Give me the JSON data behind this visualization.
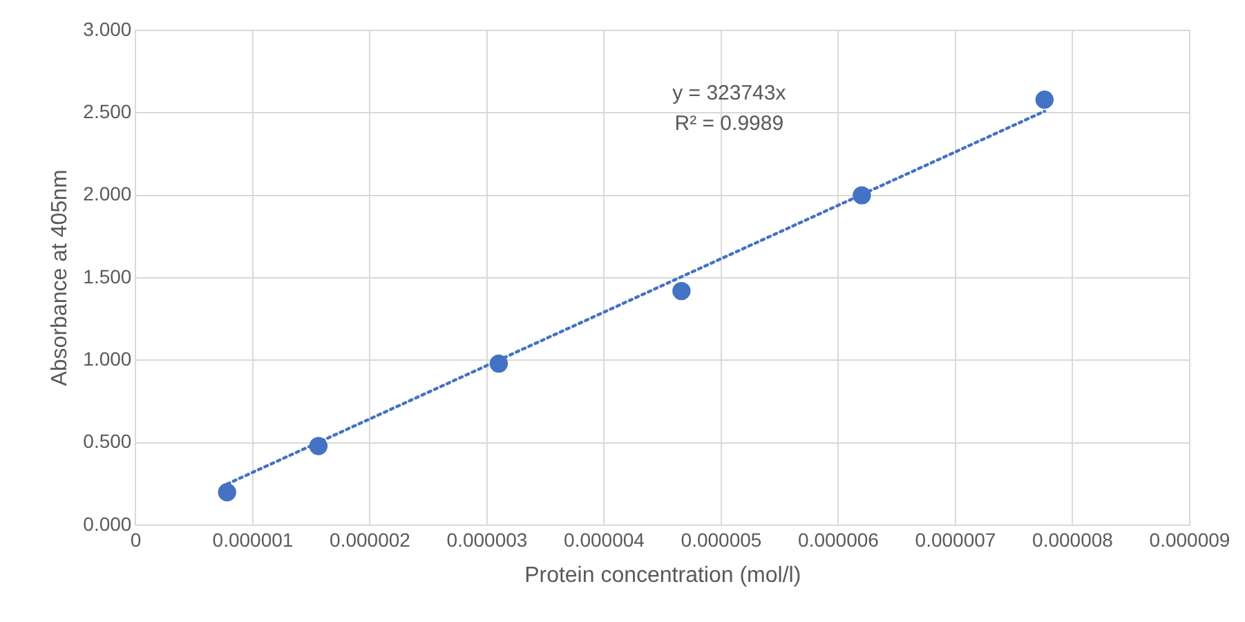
{
  "chart_data": {
    "type": "scatter",
    "xlabel": "Protein concentration (mol/l)",
    "ylabel": "Absorbance at 405nm",
    "xlim": [
      0,
      9e-06
    ],
    "xticks": [
      {
        "value": 0,
        "label": "0"
      },
      {
        "value": 1e-06,
        "label": "0.000001"
      },
      {
        "value": 2e-06,
        "label": "0.000002"
      },
      {
        "value": 3e-06,
        "label": "0.000003"
      },
      {
        "value": 4e-06,
        "label": "0.000004"
      },
      {
        "value": 5e-06,
        "label": "0.000005"
      },
      {
        "value": 6e-06,
        "label": "0.000006"
      },
      {
        "value": 7e-06,
        "label": "0.000007"
      },
      {
        "value": 8e-06,
        "label": "0.000008"
      },
      {
        "value": 9e-06,
        "label": "0.000009"
      }
    ],
    "ylim": [
      0,
      3
    ],
    "yticks": [
      {
        "value": 0,
        "label": "0.000"
      },
      {
        "value": 0.5,
        "label": "0.500"
      },
      {
        "value": 1,
        "label": "1.000"
      },
      {
        "value": 1.5,
        "label": "1.500"
      },
      {
        "value": 2,
        "label": "2.000"
      },
      {
        "value": 2.5,
        "label": "2.500"
      },
      {
        "value": 3,
        "label": "3.000"
      }
    ],
    "grid": true,
    "marker": "circle",
    "series": [
      {
        "type": "scatter",
        "color": "#4472c4",
        "x": [
          7.8e-07,
          1.56e-06,
          3.1e-06,
          4.66e-06,
          6.2e-06,
          7.76e-06
        ],
        "values": [
          0.2,
          0.48,
          0.98,
          1.42,
          2.0,
          2.58
        ]
      },
      {
        "type": "line",
        "color": "#4472c4",
        "line_style": "dotted",
        "marker": "none",
        "x": [
          7.8e-07,
          7.76e-06
        ],
        "values": [
          0.25,
          2.51
        ]
      }
    ],
    "annotations": [
      "y = 323743x",
      "R² = 0.9989"
    ]
  }
}
